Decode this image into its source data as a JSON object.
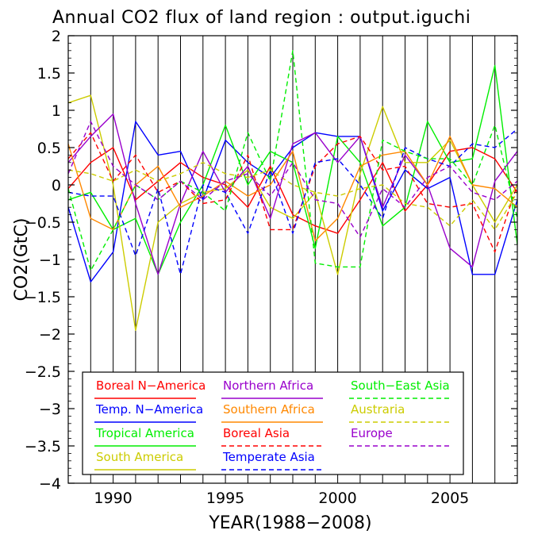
{
  "chart_data": {
    "type": "line",
    "title": "Annual CO2 flux of land region : output.iguchi",
    "xlabel": "YEAR(1988−2008)",
    "ylabel": "CO2(GtC)",
    "xlim": [
      1988,
      2008
    ],
    "ylim": [
      -4,
      2
    ],
    "x_ticks": [
      1990,
      1995,
      2000,
      2005
    ],
    "y_ticks": [
      {
        "v": 2,
        "label": "2"
      },
      {
        "v": 1.5,
        "label": "1.5"
      },
      {
        "v": 1,
        "label": "1"
      },
      {
        "v": 0.5,
        "label": "0.5"
      },
      {
        "v": 0,
        "label": "0"
      },
      {
        "v": -0.5,
        "label": "−0.5"
      },
      {
        "v": -1,
        "label": "−1"
      },
      {
        "v": -1.5,
        "label": "−1.5"
      },
      {
        "v": -2,
        "label": "−2"
      },
      {
        "v": -2.5,
        "label": "−2.5"
      },
      {
        "v": -3,
        "label": "−3"
      },
      {
        "v": -3.5,
        "label": "−3.5"
      },
      {
        "v": -4,
        "label": "−4"
      }
    ],
    "grid": "vertical lines at each year",
    "legend_position": "bottom",
    "x": [
      1988,
      1989,
      1990,
      1991,
      1992,
      1993,
      1994,
      1995,
      1996,
      1997,
      1998,
      1999,
      2000,
      2001,
      2002,
      2003,
      2004,
      2005,
      2006,
      2007,
      2008
    ],
    "series": [
      {
        "name": "Boreal N−America",
        "color": "#ff0000",
        "dash": false,
        "values": [
          -0.05,
          0.3,
          0.5,
          -0.2,
          0.05,
          0.3,
          0.1,
          0.0,
          -0.3,
          0.25,
          -0.4,
          -0.55,
          -0.65,
          -0.2,
          0.3,
          -0.35,
          0.0,
          0.45,
          0.5,
          0.35,
          -0.1
        ]
      },
      {
        "name": "Temp. N−America",
        "color": "#0000ff",
        "dash": false,
        "values": [
          -0.3,
          -1.3,
          -0.9,
          0.85,
          0.4,
          0.45,
          -0.2,
          0.6,
          0.3,
          0.1,
          0.5,
          0.7,
          0.65,
          0.65,
          -0.35,
          0.2,
          -0.05,
          0.1,
          -1.2,
          -1.2,
          -0.2
        ]
      },
      {
        "name": "Tropical America",
        "color": "#00ee00",
        "dash": false,
        "values": [
          -0.2,
          -0.1,
          -0.6,
          -0.45,
          -1.2,
          -0.5,
          0.0,
          0.8,
          0.0,
          0.45,
          0.3,
          -0.85,
          0.65,
          0.3,
          -0.55,
          -0.3,
          0.85,
          0.3,
          0.35,
          1.6,
          -0.8
        ]
      },
      {
        "name": "South America",
        "color": "#cccc00",
        "dash": false,
        "values": [
          1.1,
          1.2,
          0.0,
          -1.95,
          -0.5,
          -0.25,
          -0.1,
          -0.05,
          0.2,
          -0.3,
          -0.45,
          -0.1,
          -1.2,
          0.15,
          1.05,
          0.3,
          0.3,
          0.6,
          0.0,
          -0.5,
          0.0
        ]
      },
      {
        "name": "Northern Africa",
        "color": "#9900cc",
        "dash": false,
        "values": [
          0.3,
          0.65,
          0.95,
          -0.25,
          -1.2,
          -0.25,
          0.45,
          -0.1,
          0.25,
          -0.45,
          0.55,
          0.7,
          0.3,
          0.65,
          -0.3,
          0.4,
          0.0,
          -0.85,
          -1.1,
          0.05,
          0.45
        ]
      },
      {
        "name": "Southern Africa",
        "color": "#ff8800",
        "dash": false,
        "values": [
          0.55,
          -0.45,
          -0.6,
          0.0,
          0.25,
          -0.3,
          -0.15,
          0.05,
          -0.15,
          0.0,
          0.45,
          -0.75,
          -0.45,
          0.25,
          0.4,
          0.45,
          0.0,
          0.65,
          0.0,
          -0.05,
          -0.3
        ]
      },
      {
        "name": "Boreal Asia",
        "color": "#ff0000",
        "dash": true,
        "values": [
          0.35,
          0.7,
          0.05,
          0.4,
          -0.1,
          0.05,
          -0.25,
          -0.2,
          0.4,
          -0.6,
          -0.6,
          0.25,
          0.55,
          0.65,
          0.2,
          0.25,
          -0.25,
          -0.3,
          -0.25,
          -0.9,
          0.0
        ]
      },
      {
        "name": "Temperate Asia",
        "color": "#0000ff",
        "dash": true,
        "values": [
          -0.1,
          -0.15,
          -0.15,
          -0.95,
          -0.05,
          -1.2,
          0.0,
          -0.1,
          -0.65,
          0.2,
          -0.65,
          0.3,
          0.35,
          0.0,
          -0.45,
          0.5,
          0.35,
          0.25,
          0.55,
          0.5,
          0.75
        ]
      },
      {
        "name": "South−East Asia",
        "color": "#00ee00",
        "dash": true,
        "values": [
          -0.05,
          -1.15,
          -0.6,
          0.0,
          -0.2,
          0.05,
          -0.1,
          -0.35,
          0.7,
          0.05,
          1.8,
          -1.05,
          -1.1,
          -1.1,
          0.6,
          0.45,
          0.35,
          0.35,
          0.0,
          0.8,
          -0.45
        ]
      },
      {
        "name": "Austraria",
        "color": "#cccc00",
        "dash": true,
        "values": [
          0.2,
          0.15,
          0.05,
          0.2,
          0.05,
          0.15,
          0.3,
          0.15,
          0.1,
          0.2,
          0.0,
          -0.1,
          -0.15,
          -0.05,
          0.0,
          -0.25,
          -0.3,
          -0.55,
          -0.2,
          -0.6,
          -0.1
        ]
      },
      {
        "name": "Europe",
        "color": "#9900cc",
        "dash": true,
        "values": [
          0.15,
          0.85,
          0.25,
          0.0,
          -0.2,
          0.05,
          -0.2,
          0.05,
          0.15,
          -0.15,
          0.3,
          -0.2,
          -0.25,
          -0.7,
          -0.05,
          -0.3,
          0.1,
          0.25,
          -0.1,
          -0.2,
          0.05
        ]
      }
    ]
  }
}
